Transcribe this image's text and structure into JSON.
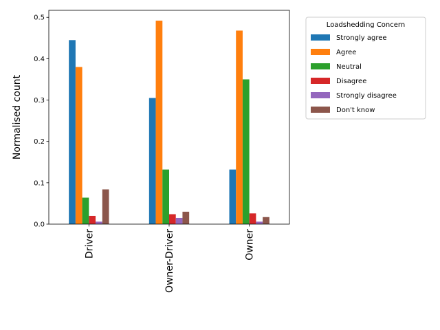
{
  "chart_data": {
    "type": "bar",
    "ylabel": "Normalised count",
    "xlabel": "",
    "categories": [
      "Driver",
      "Owner-Driver",
      "Owner"
    ],
    "ylim": [
      0,
      0.517
    ],
    "yticks": [
      "0.0",
      "0.1",
      "0.2",
      "0.3",
      "0.4",
      "0.5"
    ],
    "grid": false,
    "legend": {
      "title": "Loadshedding Concern",
      "placement": "outside-right"
    },
    "series": [
      {
        "name": "Strongly agree",
        "color": "#1f77b4",
        "values": [
          0.445,
          0.305,
          0.132
        ]
      },
      {
        "name": "Agree",
        "color": "#ff7f0e",
        "values": [
          0.38,
          0.492,
          0.468
        ]
      },
      {
        "name": "Neutral",
        "color": "#2ca02c",
        "values": [
          0.064,
          0.132,
          0.35
        ]
      },
      {
        "name": "Disagree",
        "color": "#d62728",
        "values": [
          0.02,
          0.024,
          0.026
        ]
      },
      {
        "name": "Strongly disagree",
        "color": "#9467bd",
        "values": [
          0.006,
          0.015,
          0.006
        ]
      },
      {
        "name": "Don't know",
        "color": "#8c564b",
        "values": [
          0.084,
          0.03,
          0.017
        ]
      }
    ]
  }
}
